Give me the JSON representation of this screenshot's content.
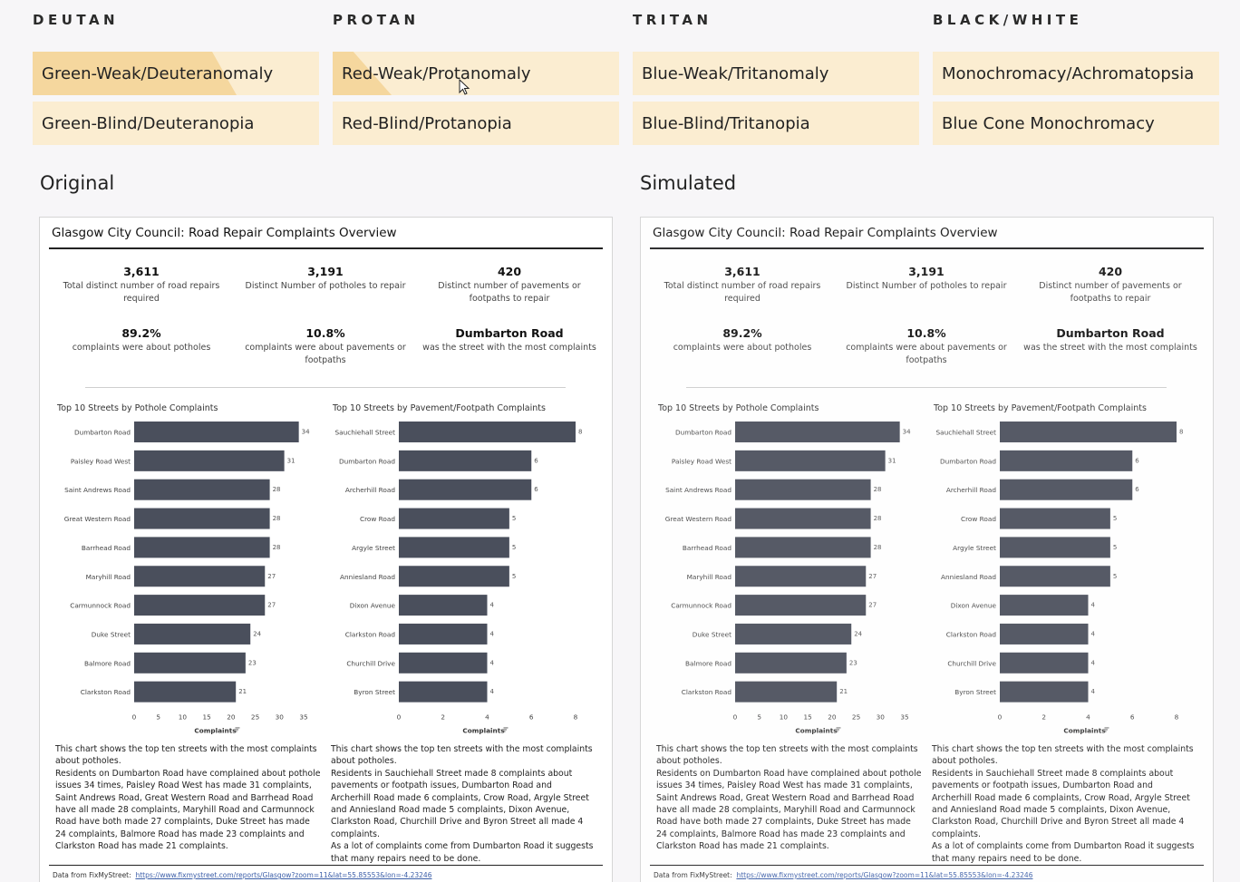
{
  "categories": [
    {
      "title": "DEUTAN",
      "options": [
        "Green-Weak/Deuteranomaly",
        "Green-Blind/Deuteranopia"
      ]
    },
    {
      "title": "PROTAN",
      "options": [
        "Red-Weak/Protanomaly",
        "Red-Blind/Protanopia"
      ]
    },
    {
      "title": "TRITAN",
      "options": [
        "Blue-Weak/Tritanomaly",
        "Blue-Blind/Tritanopia"
      ]
    },
    {
      "title": "BLACK/WHITE",
      "options": [
        "Monochromacy/Achromatopsia",
        "Blue Cone Monochromacy"
      ]
    }
  ],
  "colors": {
    "button_bg": "#fbedd1",
    "button_highlight": "#f5d79e",
    "bar": "#4a4f5c"
  },
  "sections": {
    "original": "Original",
    "simulated": "Simulated"
  },
  "dashboard": {
    "title": "Glasgow City Council: Road Repair Complaints Overview",
    "kpis": [
      {
        "value": "3,611",
        "label": "Total distinct number of road repairs required"
      },
      {
        "value": "3,191",
        "label": "Distinct Number of potholes to repair"
      },
      {
        "value": "420",
        "label": "Distinct number of pavements or footpaths to repair"
      },
      {
        "value": "89.2%",
        "label": "complaints were about potholes"
      },
      {
        "value": "10.8%",
        "label": "complaints were about pavements or footpaths"
      },
      {
        "value": "Dumbarton Road",
        "label": "was the street with the most complaints"
      }
    ],
    "paragraph_left": "This chart shows the top ten streets with the most complaints about potholes.\nResidents on Dumbarton Road have complained about pothole issues 34 times, Paisley Road West has made 31 complaints, Saint Andrews Road, Great Western Road and Barrhead Road have all made 28 complaints, Maryhill Road and Carmunnock Road have both made 27 complaints, Duke Street has made 24 complaints, Balmore Road has made 23 complaints and Clarkston Road has made 21 complaints.",
    "paragraph_right": "This chart shows the top ten streets with the most complaints about potholes.\nResidents in Sauchiehall Street made 8 complaints about pavements or footpath issues, Dumbarton Road and Archerhill Road made 6 complaints, Crow Road, Argyle Street and Anniesland Road made 5 complaints, Dixon Avenue, Clarkston Road, Churchill Drive and Byron Street all made 4 complaints.\nAs a lot of complaints come from Dumbarton Road it suggests that many repairs need to be  done.",
    "footer_text": "Data from FixMyStreet:",
    "footer_link": "https://www.fixmystreet.com/reports/Glasgow?zoom=11&lat=55.85553&lon=-4.23246"
  },
  "chart_data": [
    {
      "type": "bar",
      "title": "Top 10 Streets by Pothole Complaints",
      "categories": [
        "Dumbarton Road",
        "Paisley Road West",
        "Saint Andrews Road",
        "Great Western Road",
        "Barrhead Road",
        "Maryhill Road",
        "Carmunnock Road",
        "Duke Street",
        "Balmore Road",
        "Clarkston Road"
      ],
      "values": [
        34,
        31,
        28,
        28,
        28,
        27,
        27,
        24,
        23,
        21
      ],
      "xlabel": "Complaints",
      "xlim": [
        0,
        35
      ],
      "xticks": [
        0,
        5,
        10,
        15,
        20,
        25,
        30,
        35
      ]
    },
    {
      "type": "bar",
      "title": "Top 10 Streets by Pavement/Footpath Complaints",
      "categories": [
        "Sauchiehall Street",
        "Dumbarton Road",
        "Archerhill Road",
        "Crow Road",
        "Argyle Street",
        "Anniesland Road",
        "Dixon Avenue",
        "Clarkston Road",
        "Churchill Drive",
        "Byron Street"
      ],
      "values": [
        8,
        6,
        6,
        5,
        5,
        5,
        4,
        4,
        4,
        4
      ],
      "xlabel": "Complaints",
      "xlim": [
        0,
        8
      ],
      "xticks": [
        0,
        2,
        4,
        6,
        8
      ]
    }
  ]
}
